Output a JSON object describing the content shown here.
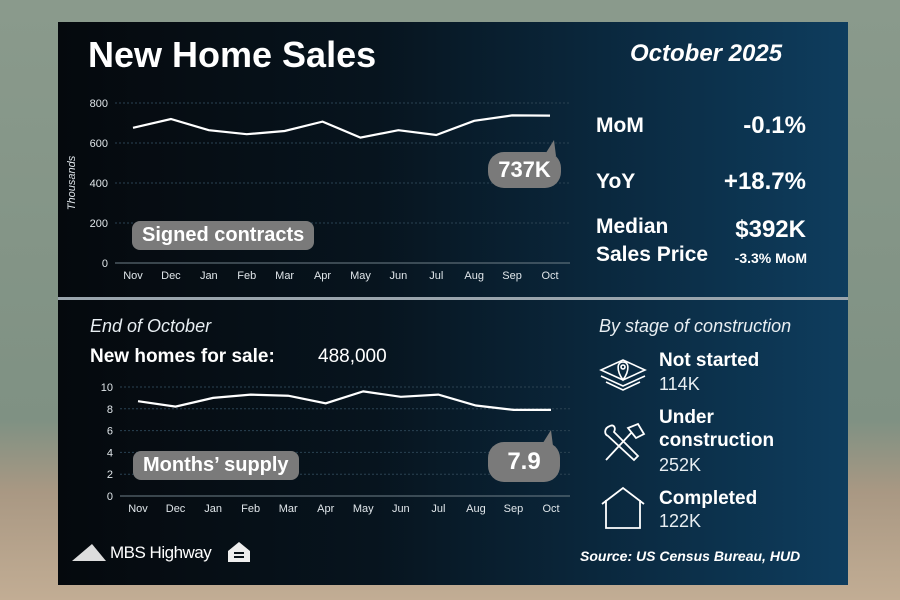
{
  "header": {
    "title": "New Home Sales",
    "date": "October 2025"
  },
  "stats": {
    "mom_label": "MoM",
    "mom_value": "-0.1%",
    "yoy_label": "YoY",
    "yoy_value": "+18.7%",
    "median_label_1": "Median",
    "median_label_2": "Sales Price",
    "median_value": "$392K",
    "median_change": "-3.3% MoM"
  },
  "lower": {
    "heading": "End of October",
    "for_sale_label": "New homes for sale:",
    "for_sale_value": "488,000"
  },
  "stages": {
    "heading": "By stage of construction",
    "items": [
      {
        "label": "Not started",
        "value": "114K",
        "icon": "map-pin-blocks-icon"
      },
      {
        "label": "Under construction",
        "label_1": "Under",
        "label_2": "construction",
        "value": "252K",
        "icon": "tools-icon"
      },
      {
        "label": "Completed",
        "value": "122K",
        "icon": "house-icon"
      }
    ]
  },
  "footer": {
    "brand": "MBS Highway",
    "source": "Source: US Census Bureau, HUD"
  },
  "chart_data": [
    {
      "type": "line",
      "title": "Signed contracts",
      "ylabel": "Thousands",
      "ylim": [
        0,
        800
      ],
      "yticks": [
        0,
        200,
        400,
        600,
        800
      ],
      "categories": [
        "Nov",
        "Dec",
        "Jan",
        "Feb",
        "Mar",
        "Apr",
        "May",
        "Jun",
        "Jul",
        "Aug",
        "Sep",
        "Oct"
      ],
      "values": [
        676,
        720,
        664,
        644,
        660,
        707,
        627,
        664,
        640,
        711,
        738,
        737
      ],
      "callout": "737K",
      "grid": true
    },
    {
      "type": "line",
      "title": "Months’ supply",
      "ylabel": "",
      "ylim": [
        0,
        10
      ],
      "yticks": [
        0,
        2,
        4,
        6,
        8,
        10
      ],
      "categories": [
        "Nov",
        "Dec",
        "Jan",
        "Feb",
        "Mar",
        "Apr",
        "May",
        "Jun",
        "Jul",
        "Aug",
        "Sep",
        "Oct"
      ],
      "values": [
        8.7,
        8.2,
        9.0,
        9.3,
        9.2,
        8.5,
        9.6,
        9.1,
        9.3,
        8.3,
        7.9,
        7.9
      ],
      "callout": "7.9",
      "grid": true
    }
  ]
}
